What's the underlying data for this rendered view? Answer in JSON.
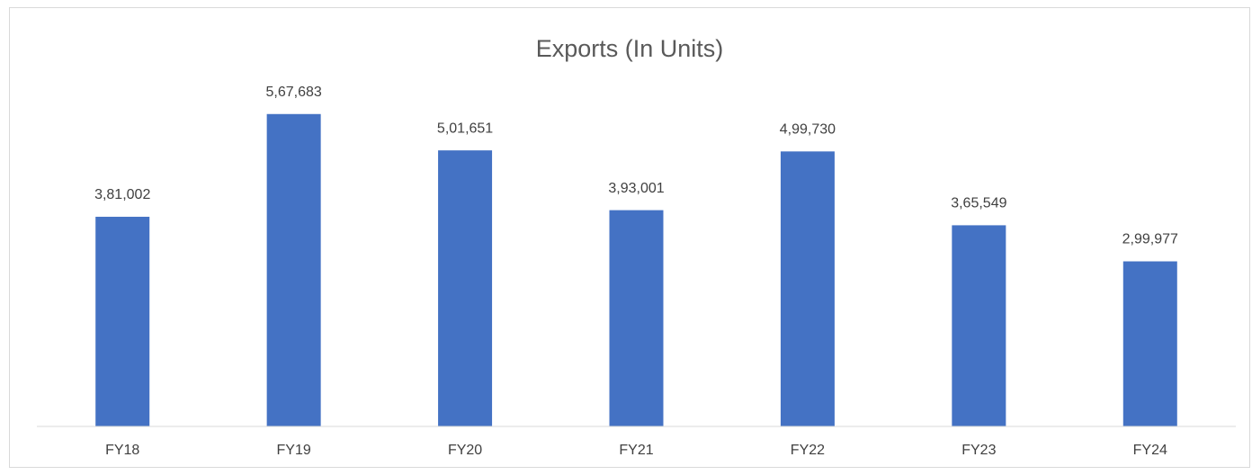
{
  "chart_data": {
    "type": "bar",
    "title": "Exports (In Units)",
    "categories": [
      "FY18",
      "FY19",
      "FY20",
      "FY21",
      "FY22",
      "FY23",
      "FY24"
    ],
    "values": [
      381002,
      567683,
      501651,
      393001,
      499730,
      365549,
      299977
    ],
    "value_labels": [
      "3,81,002",
      "5,67,683",
      "5,01,651",
      "3,93,001",
      "4,99,730",
      "3,65,549",
      "2,99,977"
    ],
    "color": "#4472c4",
    "ylim": [
      0,
      600000
    ]
  }
}
